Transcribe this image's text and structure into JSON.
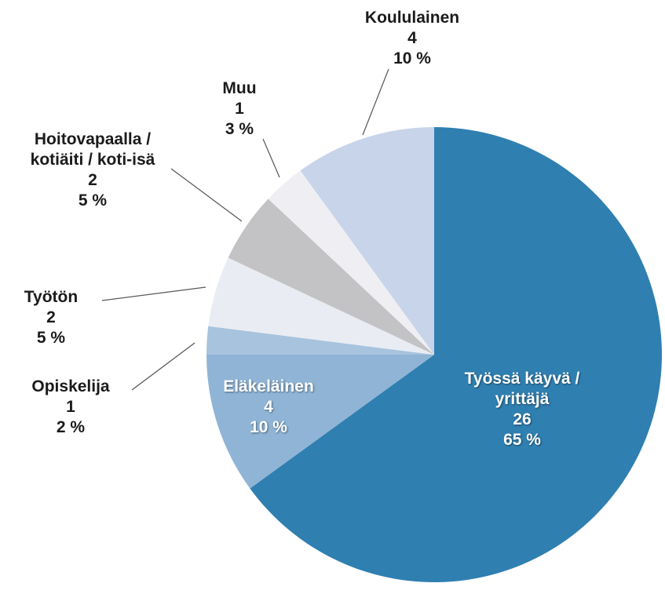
{
  "chart_data": {
    "type": "pie",
    "categories": [
      "Työssä käyvä / yrittäjä",
      "Eläkeläinen",
      "Opiskelija",
      "Työtön",
      "Hoitovapaalla / kotiäiti / koti-isä",
      "Muu",
      "Koululainen"
    ],
    "counts": [
      26,
      4,
      1,
      2,
      2,
      1,
      4
    ],
    "values": [
      65,
      10,
      2,
      5,
      5,
      3,
      10
    ],
    "value_labels": [
      "65 %",
      "10 %",
      "2 %",
      "5 %",
      "5 %",
      "3 %",
      "10 %"
    ],
    "colors": [
      "#2f7fb1",
      "#8fb4d6",
      "#a8c3de",
      "#e9edf3",
      "#c3c3c5",
      "#efeff3",
      "#c8d4ea"
    ]
  }
}
